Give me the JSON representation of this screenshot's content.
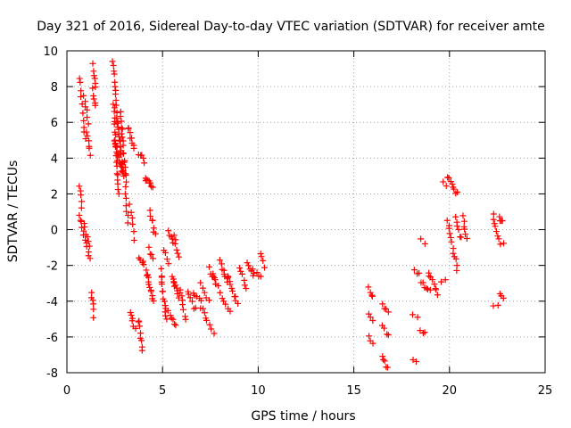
{
  "chart_data": {
    "type": "scatter",
    "title": "Day 321 of 2016, Sidereal Day-to-day VTEC variation (SDTVAR) for receiver amte",
    "xlabel": "GPS time / hours",
    "ylabel": "SDTVAR / TECUs",
    "xlim": [
      0,
      25
    ],
    "ylim": [
      -8,
      10
    ],
    "xticks": [
      0,
      5,
      10,
      15,
      20,
      25
    ],
    "yticks": [
      -8,
      -6,
      -4,
      -2,
      0,
      2,
      4,
      6,
      8,
      10
    ],
    "grid": true,
    "marker": "+",
    "color": "#ff0000",
    "segments": [
      {
        "x0": 0.65,
        "x1": 0.95,
        "y0": 8.5,
        "y1": 5.0,
        "n": 10
      },
      {
        "x0": 0.9,
        "x1": 1.1,
        "y0": 7.5,
        "y1": 6.0,
        "n": 6
      },
      {
        "x0": 1.05,
        "x1": 1.2,
        "y0": 5.5,
        "y1": 4.2,
        "n": 6
      },
      {
        "x0": 1.35,
        "x1": 1.5,
        "y0": 9.2,
        "y1": 8.0,
        "n": 6
      },
      {
        "x0": 1.35,
        "x1": 1.5,
        "y0": 7.8,
        "y1": 7.0,
        "n": 5
      },
      {
        "x0": 0.65,
        "x1": 0.8,
        "y0": 2.5,
        "y1": 1.2,
        "n": 5
      },
      {
        "x0": 0.65,
        "x1": 1.2,
        "y0": 0.8,
        "y1": -1.7,
        "n": 12
      },
      {
        "x0": 0.9,
        "x1": 1.2,
        "y0": 0.3,
        "y1": -1.0,
        "n": 6
      },
      {
        "x0": 1.3,
        "x1": 1.4,
        "y0": -3.5,
        "y1": -4.8,
        "n": 6
      },
      {
        "x0": 2.4,
        "x1": 2.6,
        "y0": 9.4,
        "y1": 7.0,
        "n": 10
      },
      {
        "x0": 2.45,
        "x1": 2.7,
        "y0": 7.0,
        "y1": 2.0,
        "n": 22
      },
      {
        "x0": 2.6,
        "x1": 2.95,
        "y0": 6.5,
        "y1": 3.0,
        "n": 20
      },
      {
        "x0": 2.8,
        "x1": 3.1,
        "y0": 6.5,
        "y1": 2.5,
        "n": 18
      },
      {
        "x0": 2.5,
        "x1": 2.9,
        "y0": 5.0,
        "y1": 3.2,
        "n": 12
      },
      {
        "x0": 3.2,
        "x1": 3.5,
        "y0": 5.7,
        "y1": 4.5,
        "n": 8
      },
      {
        "x0": 3.05,
        "x1": 3.2,
        "y0": 2.0,
        "y1": 0.5,
        "n": 6
      },
      {
        "x0": 3.3,
        "x1": 3.5,
        "y0": 1.3,
        "y1": -0.5,
        "n": 6
      },
      {
        "x0": 3.3,
        "x1": 3.55,
        "y0": -4.6,
        "y1": -5.5,
        "n": 6
      },
      {
        "x0": 3.75,
        "x1": 4.05,
        "y0": 4.3,
        "y1": 3.8,
        "n": 5
      },
      {
        "x0": 3.75,
        "x1": 3.95,
        "y0": -5.0,
        "y1": -6.7,
        "n": 8
      },
      {
        "x0": 3.8,
        "x1": 4.05,
        "y0": -1.5,
        "y1": -2.0,
        "n": 5
      },
      {
        "x0": 4.1,
        "x1": 4.5,
        "y0": 2.9,
        "y1": 2.4,
        "n": 8
      },
      {
        "x0": 4.35,
        "x1": 4.6,
        "y0": 1.1,
        "y1": -0.3,
        "n": 7
      },
      {
        "x0": 4.3,
        "x1": 4.5,
        "y0": -1.1,
        "y1": -1.6,
        "n": 4
      },
      {
        "x0": 4.15,
        "x1": 4.5,
        "y0": -2.3,
        "y1": -4.0,
        "n": 12
      },
      {
        "x0": 4.9,
        "x1": 5.2,
        "y0": -2.3,
        "y1": -5.0,
        "n": 14
      },
      {
        "x0": 5.05,
        "x1": 5.3,
        "y0": -1.2,
        "y1": -1.8,
        "n": 4
      },
      {
        "x0": 5.3,
        "x1": 5.55,
        "y0": 0.0,
        "y1": -0.8,
        "n": 5
      },
      {
        "x0": 5.6,
        "x1": 5.85,
        "y0": -0.2,
        "y1": -1.6,
        "n": 6
      },
      {
        "x0": 5.5,
        "x1": 5.85,
        "y0": -2.5,
        "y1": -3.8,
        "n": 10
      },
      {
        "x0": 5.3,
        "x1": 5.7,
        "y0": -4.6,
        "y1": -5.3,
        "n": 6
      },
      {
        "x0": 5.9,
        "x1": 6.2,
        "y0": -3.3,
        "y1": -5.0,
        "n": 8
      },
      {
        "x0": 6.3,
        "x1": 6.7,
        "y0": -3.5,
        "y1": -4.5,
        "n": 6
      },
      {
        "x0": 6.6,
        "x1": 7.0,
        "y0": -3.5,
        "y1": -3.9,
        "n": 5
      },
      {
        "x0": 7.0,
        "x1": 7.4,
        "y0": -3.0,
        "y1": -4.0,
        "n": 5
      },
      {
        "x0": 7.0,
        "x1": 7.3,
        "y0": -4.3,
        "y1": -4.9,
        "n": 4
      },
      {
        "x0": 7.3,
        "x1": 7.7,
        "y0": -5.2,
        "y1": -5.8,
        "n": 4
      },
      {
        "x0": 7.4,
        "x1": 7.8,
        "y0": -2.2,
        "y1": -3.0,
        "n": 6
      },
      {
        "x0": 7.6,
        "x1": 8.0,
        "y0": -2.5,
        "y1": -3.5,
        "n": 5
      },
      {
        "x0": 8.0,
        "x1": 8.4,
        "y0": -1.8,
        "y1": -3.0,
        "n": 8
      },
      {
        "x0": 8.4,
        "x1": 8.9,
        "y0": -2.5,
        "y1": -4.2,
        "n": 10
      },
      {
        "x0": 8.1,
        "x1": 8.5,
        "y0": -3.8,
        "y1": -4.5,
        "n": 5
      },
      {
        "x0": 9.0,
        "x1": 9.4,
        "y0": -2.2,
        "y1": -3.2,
        "n": 6
      },
      {
        "x0": 9.4,
        "x1": 9.7,
        "y0": -1.8,
        "y1": -2.5,
        "n": 5
      },
      {
        "x0": 9.7,
        "x1": 10.1,
        "y0": -2.2,
        "y1": -2.7,
        "n": 5
      },
      {
        "x0": 10.1,
        "x1": 10.3,
        "y0": -1.4,
        "y1": -2.0,
        "n": 4
      },
      {
        "x0": 15.8,
        "x1": 16.0,
        "y0": -3.2,
        "y1": -3.8,
        "n": 4
      },
      {
        "x0": 15.8,
        "x1": 16.0,
        "y0": -4.8,
        "y1": -5.0,
        "n": 3
      },
      {
        "x0": 15.8,
        "x1": 16.0,
        "y0": -6.0,
        "y1": -6.3,
        "n": 3
      },
      {
        "x0": 16.5,
        "x1": 16.8,
        "y0": -4.2,
        "y1": -4.6,
        "n": 4
      },
      {
        "x0": 16.5,
        "x1": 16.8,
        "y0": -5.3,
        "y1": -6.0,
        "n": 4
      },
      {
        "x0": 16.5,
        "x1": 16.8,
        "y0": -7.1,
        "y1": -7.8,
        "n": 5
      },
      {
        "x0": 18.2,
        "x1": 18.4,
        "y0": -2.2,
        "y1": -2.5,
        "n": 3
      },
      {
        "x0": 18.1,
        "x1": 18.3,
        "y0": -4.8,
        "y1": -4.8,
        "n": 2
      },
      {
        "x0": 18.1,
        "x1": 18.3,
        "y0": -7.3,
        "y1": -7.4,
        "n": 2
      },
      {
        "x0": 18.5,
        "x1": 18.7,
        "y0": -0.6,
        "y1": -0.7,
        "n": 2
      },
      {
        "x0": 18.5,
        "x1": 18.7,
        "y0": -5.6,
        "y1": -5.8,
        "n": 3
      },
      {
        "x0": 18.5,
        "x1": 19.0,
        "y0": -3.0,
        "y1": -3.3,
        "n": 6
      },
      {
        "x0": 18.9,
        "x1": 19.4,
        "y0": -2.3,
        "y1": -3.6,
        "n": 8
      },
      {
        "x0": 19.7,
        "x1": 19.8,
        "y0": 2.6,
        "y1": 2.5,
        "n": 2
      },
      {
        "x0": 19.6,
        "x1": 19.8,
        "y0": -2.8,
        "y1": -2.9,
        "n": 2
      },
      {
        "x0": 19.9,
        "x1": 20.4,
        "y0": 3.0,
        "y1": 2.0,
        "n": 8
      },
      {
        "x0": 19.9,
        "x1": 20.4,
        "y0": 0.5,
        "y1": -2.2,
        "n": 12
      },
      {
        "x0": 20.3,
        "x1": 20.6,
        "y0": 0.6,
        "y1": -0.5,
        "n": 6
      },
      {
        "x0": 20.7,
        "x1": 20.9,
        "y0": 0.8,
        "y1": -0.6,
        "n": 6
      },
      {
        "x0": 22.3,
        "x1": 22.5,
        "y0": 0.9,
        "y1": -0.3,
        "n": 6
      },
      {
        "x0": 22.6,
        "x1": 22.8,
        "y0": 0.7,
        "y1": 0.4,
        "n": 4
      },
      {
        "x0": 22.6,
        "x1": 22.8,
        "y0": -0.6,
        "y1": -0.8,
        "n": 3
      },
      {
        "x0": 22.3,
        "x1": 22.5,
        "y0": -4.2,
        "y1": -4.3,
        "n": 2
      },
      {
        "x0": 22.6,
        "x1": 22.8,
        "y0": -3.7,
        "y1": -3.9,
        "n": 3
      }
    ]
  }
}
